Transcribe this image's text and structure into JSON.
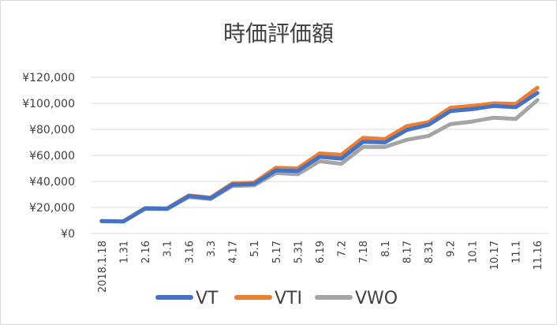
{
  "chart_data": {
    "type": "line",
    "title": "時価評価額",
    "xlabel": "",
    "ylabel": "",
    "ylim": [
      0,
      120000
    ],
    "ytick_values": [
      0,
      20000,
      40000,
      60000,
      80000,
      100000,
      120000
    ],
    "ytick_labels": [
      "¥0",
      "¥20,000",
      "¥40,000",
      "¥60,000",
      "¥80,000",
      "¥100,000",
      "¥120,000"
    ],
    "grid": true,
    "legend_position": "bottom",
    "categories": [
      "2018.1.18",
      "1.31",
      "2.16",
      "3.1",
      "3.16",
      "3.3",
      "4.17",
      "5.1",
      "5.17",
      "5.31",
      "6.19",
      "7.2",
      "7.18",
      "8.1",
      "8.17",
      "8.31",
      "9.2",
      "10.1",
      "10.17",
      "11.1",
      "11.16"
    ],
    "series": [
      {
        "name": "VT",
        "color": "#4472C4",
        "values": [
          9500,
          9300,
          19300,
          19000,
          28800,
          27000,
          37500,
          38000,
          48500,
          48000,
          59000,
          57500,
          70500,
          70000,
          79500,
          83500,
          94000,
          95500,
          98000,
          97000,
          108000
        ]
      },
      {
        "name": "VTI",
        "color": "#ED7D31",
        "values": [
          9600,
          9400,
          19500,
          19200,
          29200,
          27500,
          38500,
          39000,
          50500,
          50000,
          61500,
          60500,
          73500,
          72500,
          82500,
          85500,
          96500,
          98000,
          100000,
          99500,
          112000
        ]
      },
      {
        "name": "VWO",
        "color": "#A5A5A5",
        "values": [
          9400,
          9200,
          19000,
          18800,
          28000,
          26500,
          36500,
          37000,
          46500,
          45500,
          55500,
          53500,
          66500,
          66500,
          72000,
          75000,
          84000,
          86000,
          89000,
          88000,
          102500
        ]
      }
    ]
  }
}
